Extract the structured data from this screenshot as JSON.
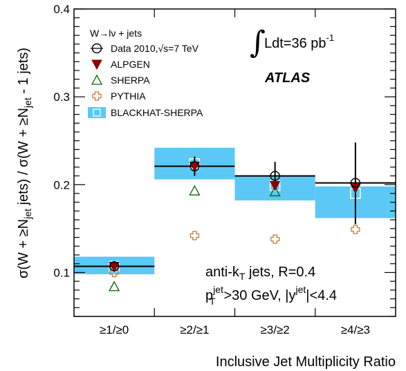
{
  "chart_data": {
    "type": "scatter",
    "categories": [
      "≥1/≥0",
      "≥2/≥1",
      "≥3/≥2",
      "≥4/≥3"
    ],
    "ylim": [
      0.05,
      0.4
    ],
    "y_ticks": [
      "0.1",
      "0.2",
      "0.3",
      "0.4"
    ],
    "xlabel": "Inclusive Jet Multiplicity Ratio",
    "ylabel": "σ(W + ≥N_jet jets) / σ(W + ≥N_jet - 1 jets)",
    "legend_header": "W→lν + jets",
    "legend_placement": "top-left",
    "series": [
      {
        "name": "Data 2010,√s=7 TeV",
        "marker": "open-circle-errorbar",
        "color": "#000000",
        "values": [
          0.107,
          0.221,
          0.21,
          0.202
        ],
        "err_low": [
          0.006,
          0.011,
          0.012,
          0.047
        ],
        "err_high": [
          0.006,
          0.011,
          0.016,
          0.046
        ]
      },
      {
        "name": "ALPGEN",
        "marker": "filled-triangle-down",
        "color": "#8b0000",
        "values": [
          0.107,
          0.221,
          0.199,
          0.196
        ]
      },
      {
        "name": "SHERPA",
        "marker": "open-triangle-up",
        "color": "#006400",
        "values": [
          0.084,
          0.193,
          0.192,
          null
        ]
      },
      {
        "name": "PYTHIA",
        "marker": "open-cross",
        "color": "#c87533",
        "values": [
          0.1,
          0.142,
          0.138,
          0.149
        ]
      },
      {
        "name": "BLACKHAT-SHERPA",
        "marker": "band-with-open-square",
        "color": "#5bc8f5",
        "values": [
          0.107,
          0.224,
          0.199,
          0.19
        ],
        "band_low": [
          0.098,
          0.206,
          0.182,
          0.162
        ],
        "band_high": [
          0.118,
          0.242,
          0.21,
          0.198
        ]
      }
    ],
    "annotations": {
      "lumi_integral": "∫",
      "lumi_text": "Ldt=36 pb",
      "lumi_sup": "-1",
      "experiment": "ATLAS",
      "algo": "anti-k",
      "algo_sub": "T",
      "algo_rest": " jets, R=0.4",
      "cut_p": "p",
      "cut_p_sup": "jet",
      "cut_p_sub": "T",
      "cut_mid": ">30 GeV, |y",
      "cut_y_sup": "jet",
      "cut_end": "|<4.4"
    },
    "grid": false
  }
}
